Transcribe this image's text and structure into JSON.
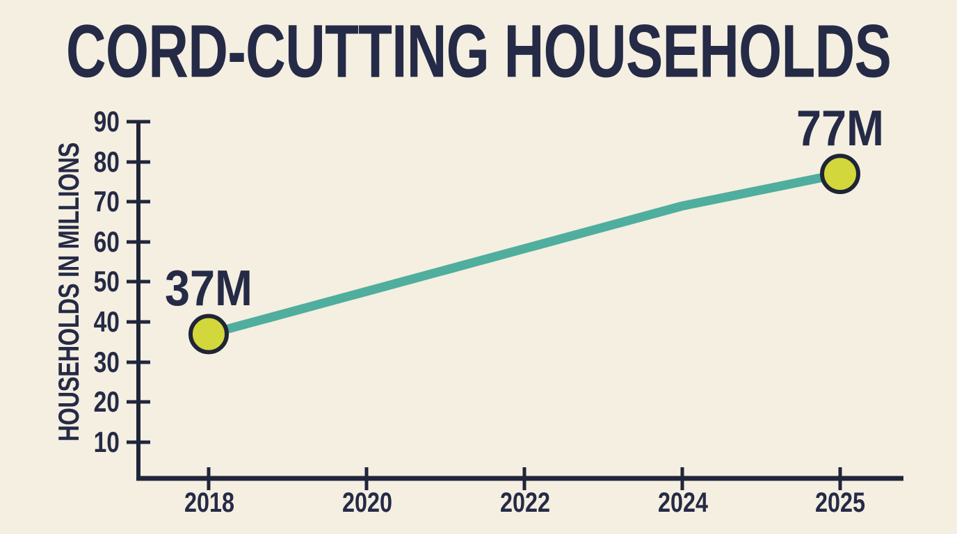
{
  "header": {
    "title": "CORD-CUTTING HOUSEHOLDS"
  },
  "chart_data": {
    "type": "line",
    "title": "CORD-CUTTING HOUSEHOLDS",
    "xlabel": "",
    "ylabel": "HOUSEHOLDS IN MILLIONS",
    "categories": [
      "2018",
      "2020",
      "2022",
      "2024",
      "2025"
    ],
    "y_ticks_top_to_bottom": [
      "90",
      "80",
      "70",
      "60",
      "50",
      "40",
      "30",
      "20",
      "10"
    ],
    "y_tick_values": [
      10,
      20,
      30,
      40,
      50,
      60,
      70,
      80,
      90
    ],
    "ylim": [
      0,
      93
    ],
    "grid": false,
    "legend_position": "none",
    "points": [
      {
        "category": "2018",
        "value": 37,
        "label": "37M"
      },
      {
        "category": "2025",
        "value": 77,
        "label": "77M"
      }
    ],
    "line_path_estimated": [
      {
        "category": "2018",
        "value": 37
      },
      {
        "category": "2024",
        "value": 69
      },
      {
        "category": "2025",
        "value": 77
      }
    ],
    "colors": {
      "background": "#F4EFE1",
      "ink": "#252A46",
      "axis": "#20253A",
      "trend_line": "#4FAE9E",
      "marker_fill": "#D2D73B",
      "marker_stroke": "#1F2436"
    }
  }
}
